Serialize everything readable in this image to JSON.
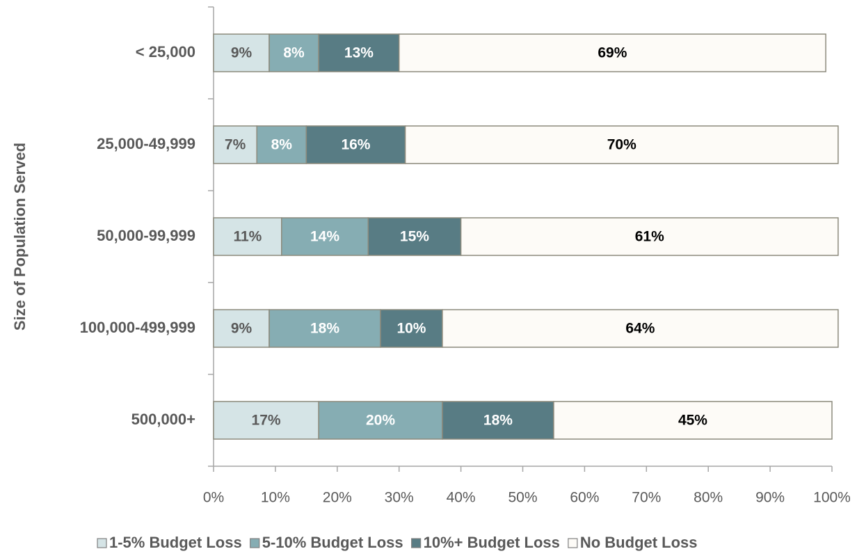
{
  "chart_data": {
    "type": "stacked_bar_horizontal",
    "y_label": "Size of Population Served",
    "categories": [
      "< 25,000",
      "25,000-49,999",
      "50,000-99,999",
      "100,000-499,999",
      "500,000+"
    ],
    "series": [
      {
        "name": "1-5% Budget Loss",
        "color": "#d5e4e6",
        "values": [
          9,
          7,
          11,
          9,
          17
        ],
        "value_labels": [
          "9%",
          "7%",
          "11%",
          "9%",
          "17%"
        ]
      },
      {
        "name": "5-10% Budget Loss",
        "color": "#86adb3",
        "values": [
          8,
          8,
          14,
          18,
          20
        ],
        "value_labels": [
          "8%",
          "8%",
          "14%",
          "18%",
          "20%"
        ]
      },
      {
        "name": "10%+ Budget Loss",
        "color": "#587c84",
        "values": [
          13,
          16,
          15,
          10,
          18
        ],
        "value_labels": [
          "13%",
          "16%",
          "15%",
          "10%",
          "18%"
        ]
      },
      {
        "name": "No Budget Loss",
        "color": "#fdfbf7",
        "values": [
          69,
          70,
          61,
          64,
          45
        ],
        "value_labels": [
          "69%",
          "70%",
          "61%",
          "64%",
          "45%"
        ]
      }
    ],
    "xlim": [
      0,
      100
    ],
    "xticks": [
      {
        "value": 0,
        "label": "0%"
      },
      {
        "value": 10,
        "label": "10%"
      },
      {
        "value": 20,
        "label": "20%"
      },
      {
        "value": 30,
        "label": "30%"
      },
      {
        "value": 40,
        "label": "40%"
      },
      {
        "value": 50,
        "label": "50%"
      },
      {
        "value": 60,
        "label": "60%"
      },
      {
        "value": 70,
        "label": "70%"
      },
      {
        "value": 80,
        "label": "80%"
      },
      {
        "value": 90,
        "label": "90%"
      },
      {
        "value": 100,
        "label": "100%"
      }
    ],
    "legend": "bottom"
  }
}
